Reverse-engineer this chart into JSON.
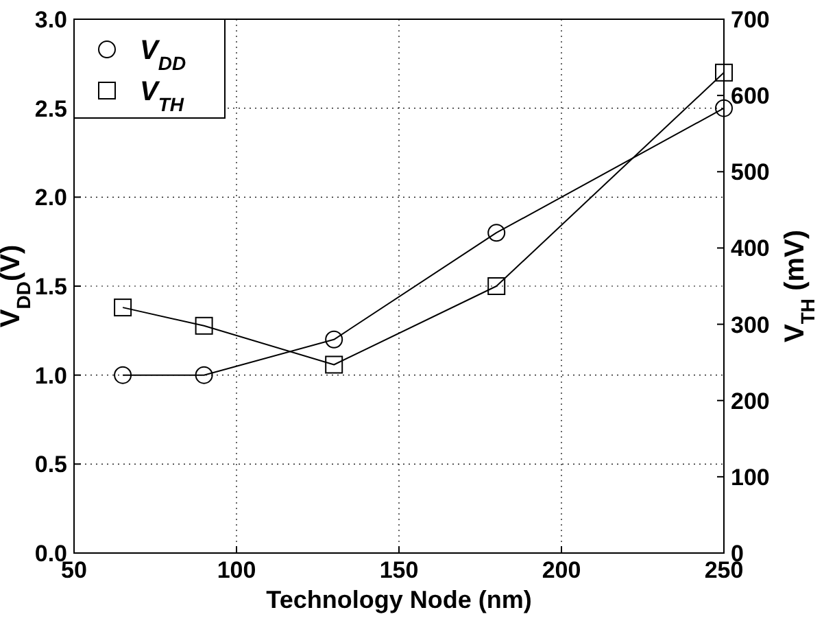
{
  "chart_data": {
    "type": "line",
    "xlabel": "Technology Node (nm)",
    "ylabel": "V$_{DD}$(V)",
    "y2label": "V$_{TH}$ (mV)",
    "x": [
      65,
      90,
      130,
      180,
      250
    ],
    "series": [
      {
        "name": "V$_{DD}$",
        "color": "#000000",
        "marker": "circle",
        "values": [
          1.0,
          1.0,
          1.2,
          1.8,
          2.5
        ]
      },
      {
        "name": "V$_{TH}$",
        "color": "#000000",
        "marker": "square",
        "axis": "y2",
        "values": [
          322,
          298,
          247,
          350,
          630
        ]
      }
    ],
    "xlim": [
      50,
      250
    ],
    "xticks": [
      50,
      100,
      150,
      200,
      250
    ],
    "ylim": [
      0,
      3
    ],
    "yticks": [
      {
        "value": 0,
        "label": "0.0"
      },
      {
        "value": 0.5,
        "label": "0.5"
      },
      {
        "value": 1,
        "label": "1.0"
      },
      {
        "value": 1.5,
        "label": "1.5"
      },
      {
        "value": 2,
        "label": "2.0"
      },
      {
        "value": 2.5,
        "label": "2.5"
      },
      {
        "value": 3,
        "label": "3.0"
      }
    ],
    "y2lim": [
      0,
      700
    ],
    "y2ticks": [
      0,
      100,
      200,
      300,
      400,
      500,
      600,
      700
    ],
    "grid": true,
    "legend": "top left",
    "line_style": "solid"
  }
}
